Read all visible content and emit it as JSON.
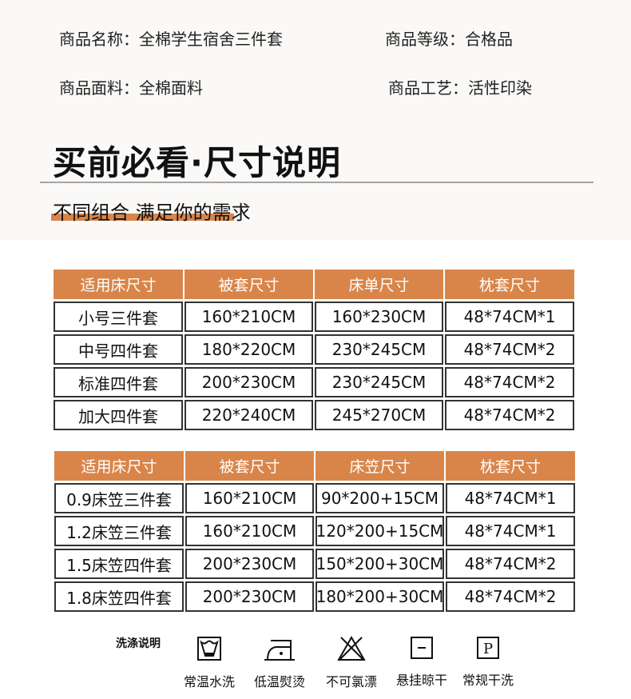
{
  "info": {
    "name": "商品名称：全棉学生宿舍三件套",
    "grade": "商品等级：合格品",
    "fabric": "商品面料：全棉面料",
    "craft": "商品工艺：活性印染"
  },
  "title": "买前必看·尺寸说明",
  "subtitle": "不同组合 满足你的需求",
  "accent": "#d9854a",
  "table1": {
    "headers": [
      "适用床尺寸",
      "被套尺寸",
      "床单尺寸",
      "枕套尺寸"
    ],
    "rows": [
      [
        "小号三件套",
        "160*210CM",
        "160*230CM",
        "48*74CM*1"
      ],
      [
        "中号四件套",
        "180*220CM",
        "230*245CM",
        "48*74CM*2"
      ],
      [
        "标准四件套",
        "200*230CM",
        "230*245CM",
        "48*74CM*2"
      ],
      [
        "加大四件套",
        "220*240CM",
        "245*270CM",
        "48*74CM*2"
      ]
    ]
  },
  "table2": {
    "headers": [
      "适用床尺寸",
      "被套尺寸",
      "床笠尺寸",
      "枕套尺寸"
    ],
    "rows": [
      [
        "0.9床笠三件套",
        "160*210CM",
        "90*200+15CM",
        "48*74CM*1"
      ],
      [
        "1.2床笠三件套",
        "160*210CM",
        "120*200+15CM",
        "48*74CM*1"
      ],
      [
        "1.5床笠四件套",
        "200*230CM",
        "150*200+30CM",
        "48*74CM*2"
      ],
      [
        "1.8床笠四件套",
        "200*230CM",
        "180*200+30CM",
        "48*74CM*2"
      ]
    ]
  },
  "wash": {
    "label": "洗涤说明",
    "items": [
      {
        "icon": "wash-tub-icon",
        "label": "常温水洗"
      },
      {
        "icon": "iron-low-icon",
        "label": "低温熨烫"
      },
      {
        "icon": "no-bleach-icon",
        "label": "不可氯漂"
      },
      {
        "icon": "hang-dry-icon",
        "label": "悬挂晾干"
      },
      {
        "icon": "dry-clean-icon",
        "label": "常规干洗"
      }
    ]
  }
}
